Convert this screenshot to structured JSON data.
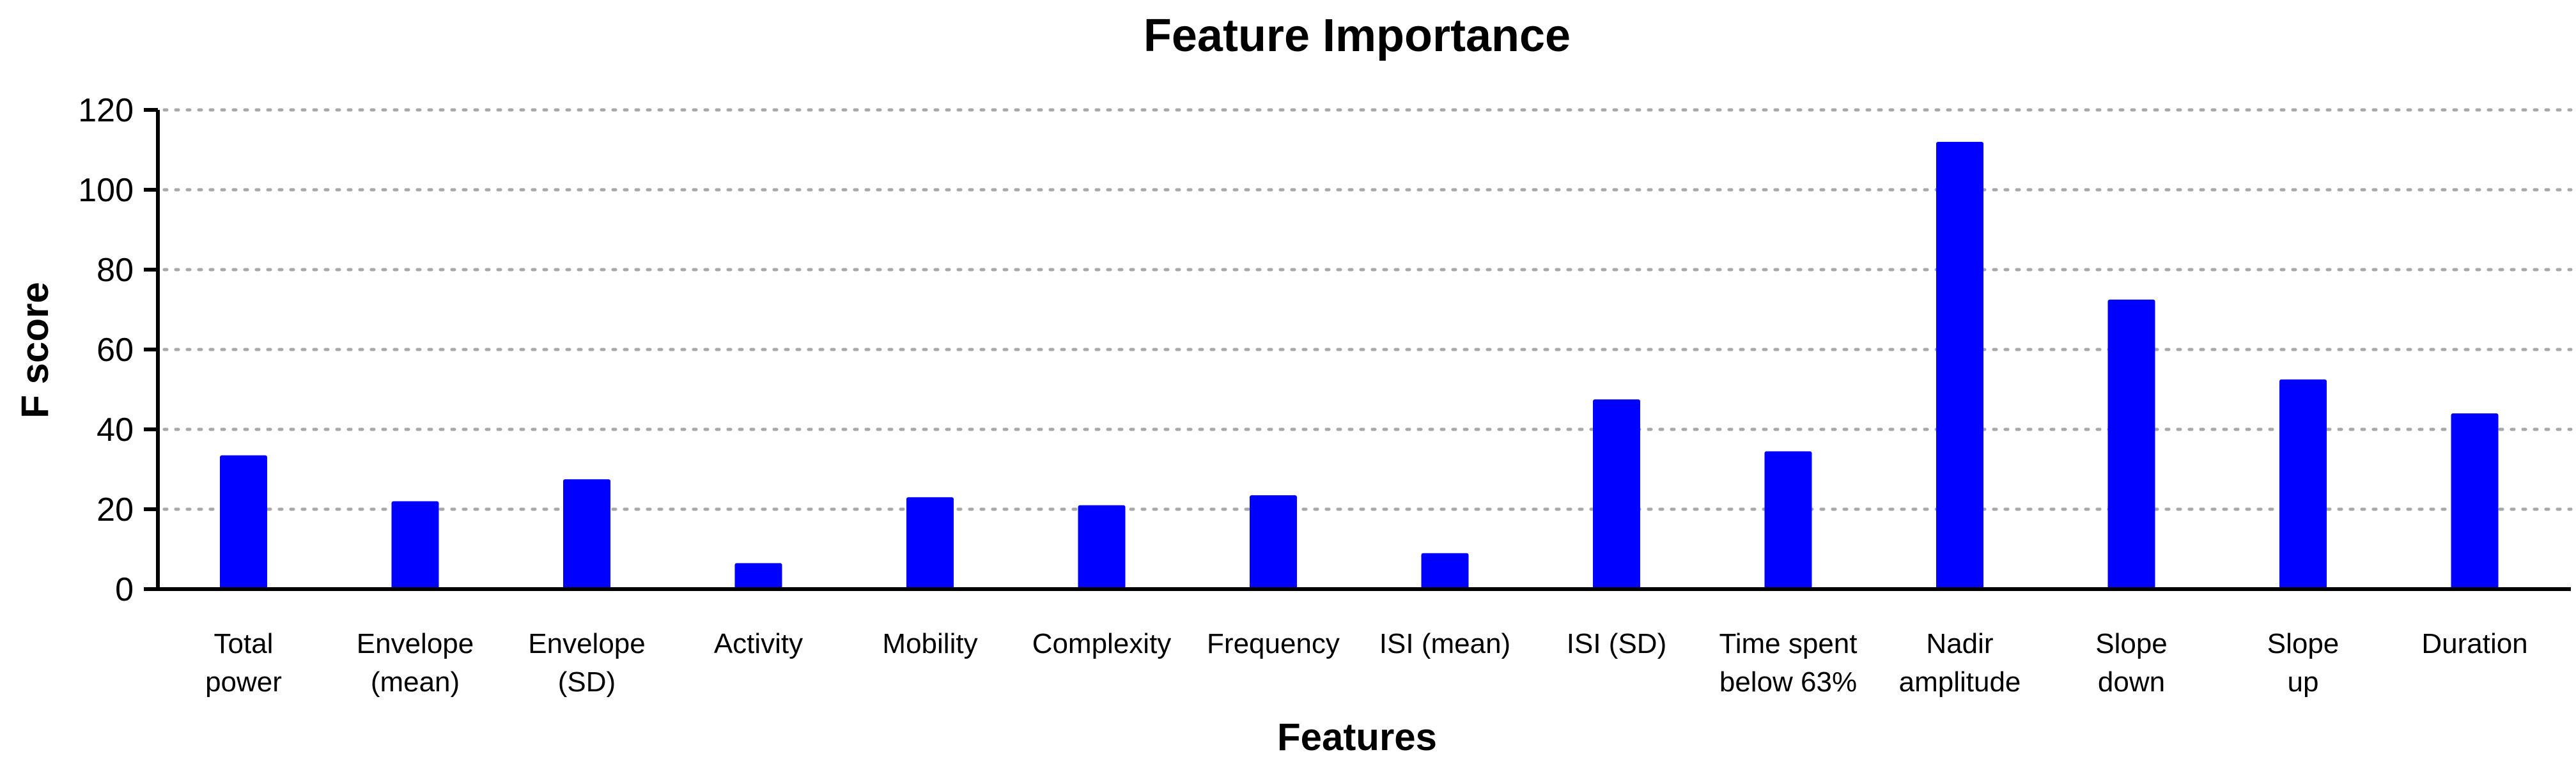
{
  "chart_data": {
    "type": "bar",
    "title": "Feature Importance",
    "xlabel": "Features",
    "ylabel": "F score",
    "ylim": [
      0,
      120
    ],
    "yticks": [
      0,
      20,
      40,
      60,
      80,
      100,
      120
    ],
    "grid": true,
    "bar_color": "#0000ff",
    "categories": [
      [
        "Total",
        "power"
      ],
      [
        "Envelope",
        "(mean)"
      ],
      [
        "Envelope",
        "(SD)"
      ],
      [
        "Activity"
      ],
      [
        "Mobility"
      ],
      [
        "Complexity"
      ],
      [
        "Frequency"
      ],
      [
        "ISI (mean)"
      ],
      [
        "ISI (SD)"
      ],
      [
        "Time spent",
        "below 63%"
      ],
      [
        "Nadir",
        "amplitude"
      ],
      [
        "Slope",
        "down"
      ],
      [
        "Slope",
        "up"
      ],
      [
        "Duration"
      ]
    ],
    "values": [
      33.5,
      22,
      27.5,
      6.5,
      23,
      21,
      23.5,
      9,
      47.5,
      34.5,
      112,
      72.5,
      52.5,
      44
    ]
  }
}
